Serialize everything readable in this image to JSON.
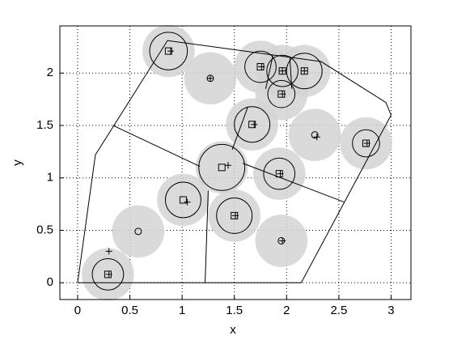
{
  "chart_data": {
    "type": "scatter",
    "xlabel": "x",
    "ylabel": "y",
    "xlim": [
      -0.17,
      3.19
    ],
    "ylim": [
      -0.16,
      2.45
    ],
    "xticks": [
      0,
      0.5,
      1,
      1.5,
      2,
      2.5,
      3
    ],
    "yticks": [
      0,
      0.5,
      1,
      1.5,
      2
    ],
    "grid": true,
    "disks": {
      "color": "#d3d3d3",
      "radius": 0.25,
      "x": [
        0.87,
        1.27,
        1.75,
        1.96,
        2.17,
        1.95,
        1.67,
        2.27,
        2.76,
        1.38,
        1.93,
        1.01,
        1.5,
        0.58,
        1.95,
        0.29
      ],
      "y": [
        2.21,
        1.95,
        2.06,
        2.02,
        2.02,
        1.8,
        1.51,
        1.41,
        1.33,
        1.1,
        1.04,
        0.79,
        0.64,
        0.49,
        0.4,
        0.08
      ]
    },
    "rings": {
      "x": [
        0.87,
        1.75,
        1.96,
        2.17,
        1.95,
        1.67,
        2.76,
        1.38,
        1.93,
        1.01,
        1.5,
        0.29
      ],
      "y": [
        2.21,
        2.06,
        2.02,
        2.02,
        1.8,
        1.51,
        1.33,
        1.1,
        1.04,
        0.79,
        0.64,
        0.08
      ],
      "r": [
        0.18,
        0.15,
        0.15,
        0.17,
        0.13,
        0.17,
        0.13,
        0.22,
        0.15,
        0.17,
        0.17,
        0.15
      ]
    },
    "squares": {
      "x": [
        0.87,
        1.75,
        1.96,
        2.17,
        1.95,
        1.67,
        2.76,
        1.38,
        1.93,
        1.01,
        1.5,
        0.29
      ],
      "y": [
        2.21,
        2.06,
        2.02,
        2.02,
        1.8,
        1.51,
        1.33,
        1.1,
        1.04,
        0.79,
        0.64,
        0.08
      ]
    },
    "circles": {
      "x": [
        1.27,
        2.27,
        0.58,
        1.95
      ],
      "y": [
        1.95,
        1.41,
        0.49,
        0.4
      ]
    },
    "pluses": {
      "x": [
        0.89,
        1.27,
        1.76,
        1.96,
        2.17,
        1.96,
        1.69,
        2.29,
        2.77,
        1.44,
        1.94,
        1.05,
        1.51,
        0.3,
        1.96,
        0.3
      ],
      "y": [
        2.21,
        1.95,
        2.06,
        2.02,
        2.02,
        1.8,
        1.51,
        1.39,
        1.33,
        1.12,
        1.04,
        0.77,
        0.64,
        0.3,
        0.4,
        0.08
      ]
    },
    "edges": [
      {
        "x": [
          0,
          0.17,
          0.86,
          2.33,
          2.95,
          3.0,
          2.14,
          0
        ],
        "y": [
          0,
          1.22,
          2.31,
          2.11,
          1.72,
          1.6,
          0,
          0
        ]
      },
      {
        "x": [
          0.34,
          1.17
        ],
        "y": [
          1.5,
          1.11
        ]
      },
      {
        "x": [
          1.25,
          1.22
        ],
        "y": [
          0.88,
          0
        ]
      },
      {
        "x": [
          1.58,
          2.55
        ],
        "y": [
          1.14,
          0.77
        ]
      },
      {
        "x": [
          1.48,
          1.63
        ],
        "y": [
          1.27,
          1.68
        ]
      },
      {
        "x": [
          1.87,
          1.8
        ],
        "y": [
          2.17,
          1.85
        ]
      },
      {
        "x": [
          2.03,
          2.05
        ],
        "y": [
          2.16,
          1.85
        ]
      }
    ]
  }
}
